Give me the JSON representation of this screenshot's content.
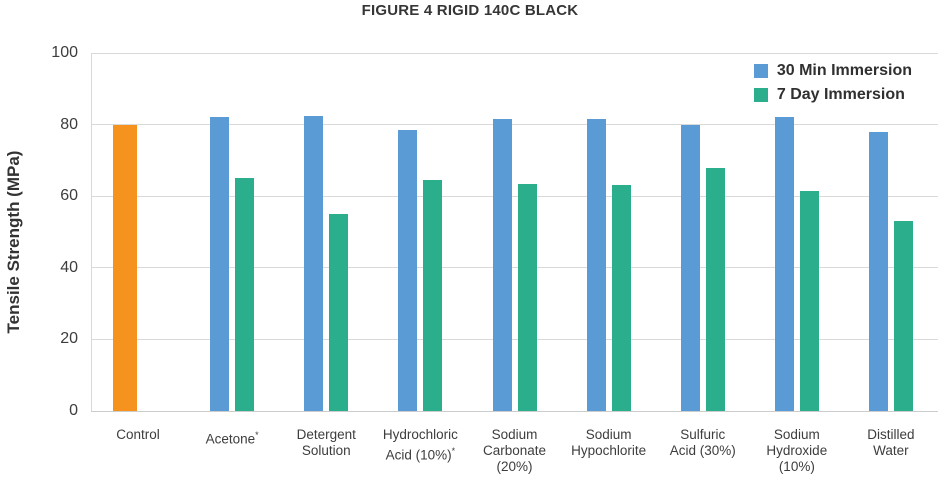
{
  "title": "FIGURE 4 RIGID 140C BLACK",
  "y_axis_title": "Tensile Strength (MPa)",
  "legend": {
    "items": [
      {
        "label": "30 Min Immersion",
        "color": "#5B9BD5"
      },
      {
        "label": "7 Day Immersion",
        "color": "#2BAE8C"
      }
    ],
    "position": "top-right"
  },
  "chart_data": {
    "type": "bar",
    "title": "FIGURE 4 RIGID 140C BLACK",
    "ylabel": "Tensile Strength (MPa)",
    "xlabel": "",
    "ylim": [
      0,
      100
    ],
    "yticks": [
      0,
      20,
      40,
      60,
      80,
      100
    ],
    "grid": true,
    "legend_position": "top-right",
    "categories": [
      [
        "Control"
      ],
      [
        "Acetone*"
      ],
      [
        "Detergent",
        "Solution"
      ],
      [
        "Hydrochloric",
        "Acid (10%)*"
      ],
      [
        "Sodium",
        "Carbonate",
        "(20%)"
      ],
      [
        "Sodium",
        "Hypochlorite"
      ],
      [
        "Sulfuric",
        "Acid (30%)"
      ],
      [
        "Sodium",
        "Hydroxide",
        "(10%)"
      ],
      [
        "Distilled",
        "Water"
      ]
    ],
    "series": [
      {
        "name": "30 Min Immersion",
        "color": "#5B9BD5",
        "values": [
          80,
          82,
          82.5,
          78.5,
          81.5,
          81.5,
          80,
          82,
          78
        ]
      },
      {
        "name": "7 Day Immersion",
        "color": "#2BAE8C",
        "values": [
          null,
          65,
          55,
          64.5,
          63.5,
          63,
          68,
          61.5,
          53
        ]
      }
    ],
    "control_bar_color": "#F6921E"
  },
  "colors": {
    "blue_series": "#5B9BD5",
    "green_series": "#2BAE8C",
    "control_orange": "#F6921E",
    "gridline": "#d9d9d9",
    "text": "#3d3d3d"
  }
}
